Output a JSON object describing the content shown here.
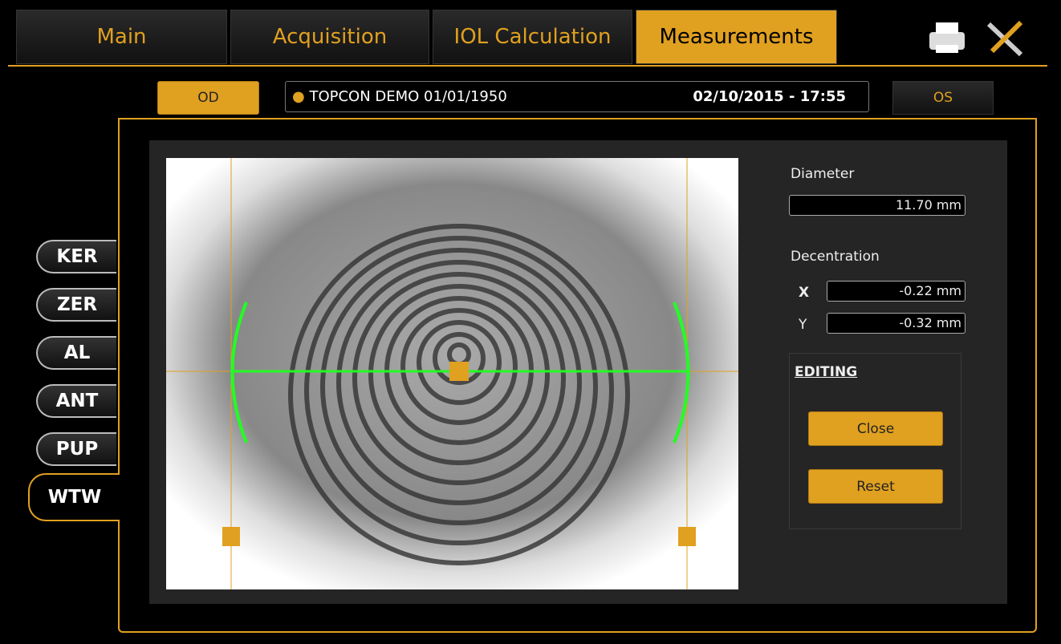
{
  "tabs": [
    "Main",
    "Acquisition",
    "IOL Calculation",
    "Measurements"
  ],
  "eye_left": "OD",
  "eye_right": "OS",
  "patient": "TOPCON DEMO 01/01/1950",
  "datetime": "02/10/2015 - 17:55",
  "side_tabs": [
    "KER",
    "ZER",
    "AL",
    "ANT",
    "PUP",
    "WTW"
  ],
  "panel": {
    "diameter_label": "Diameter",
    "diameter": "11.70 mm",
    "decentration_label": "Decentration",
    "x_label": "X",
    "x": "-0.22 mm",
    "y_label": "Y",
    "y": "-0.32 mm",
    "editing": "EDITING",
    "close": "Close",
    "reset": "Reset"
  }
}
